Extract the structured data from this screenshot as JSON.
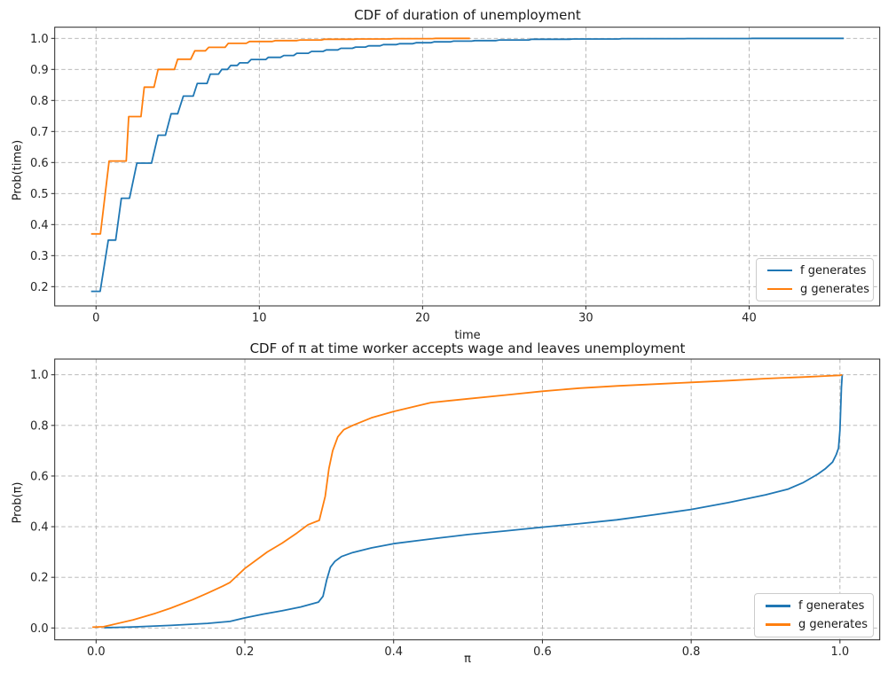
{
  "style": {
    "background": "#ffffff",
    "spine_color": "#262626",
    "text_color": "#1a1a1a",
    "grid_color": "#b0b0b0",
    "series_blue": "#1f77b4",
    "series_orange": "#ff7f0e"
  },
  "chart_data": [
    {
      "type": "line",
      "title": "CDF of duration of unemployment",
      "xlabel": "time",
      "ylabel": "Prob(time)",
      "xlim": [
        -2.53,
        48.0
      ],
      "ylim": [
        0.138,
        1.036
      ],
      "xticks": [
        0,
        10,
        20,
        30,
        40
      ],
      "xtick_labels": [
        "0",
        "10",
        "20",
        "30",
        "40"
      ],
      "yticks": [
        0.2,
        0.3,
        0.4,
        0.5,
        0.6,
        0.7,
        0.8,
        0.9,
        1.0
      ],
      "ytick_labels": [
        "0.2",
        "0.3",
        "0.4",
        "0.5",
        "0.6",
        "0.7",
        "0.8",
        "0.9",
        "1.0"
      ],
      "grid": true,
      "grid_color": "#b0b0b0",
      "legend_position": "lower right",
      "series": [
        {
          "name": "f generates",
          "color": "#1f77b4",
          "x": [
            -0.3,
            0.25,
            0.75,
            1.2,
            1.55,
            2.05,
            2.5,
            3.4,
            3.8,
            4.25,
            4.6,
            5.0,
            5.35,
            5.95,
            6.2,
            6.8,
            7.0,
            7.5,
            7.7,
            8.05,
            8.25,
            8.65,
            8.8,
            9.3,
            9.5,
            10.4,
            10.55,
            11.3,
            11.5,
            12.1,
            12.3,
            13.0,
            13.2,
            13.9,
            14.1,
            14.8,
            15.0,
            15.7,
            15.9,
            16.5,
            16.7,
            17.4,
            17.6,
            18.4,
            18.6,
            19.4,
            19.6,
            20.5,
            20.7,
            21.7,
            21.9,
            23.0,
            23.2,
            24.5,
            24.7,
            26.5,
            26.7,
            29.0,
            29.2,
            32.0,
            32.2,
            36.0,
            36.2,
            40.0,
            40.2,
            45.8
          ],
          "y": [
            0.185,
            0.185,
            0.35,
            0.35,
            0.485,
            0.485,
            0.598,
            0.598,
            0.688,
            0.688,
            0.757,
            0.757,
            0.814,
            0.814,
            0.855,
            0.855,
            0.885,
            0.885,
            0.9,
            0.9,
            0.913,
            0.913,
            0.921,
            0.921,
            0.932,
            0.932,
            0.939,
            0.939,
            0.945,
            0.945,
            0.952,
            0.952,
            0.958,
            0.958,
            0.963,
            0.963,
            0.968,
            0.968,
            0.972,
            0.972,
            0.976,
            0.976,
            0.98,
            0.98,
            0.983,
            0.983,
            0.986,
            0.986,
            0.989,
            0.989,
            0.991,
            0.991,
            0.993,
            0.993,
            0.995,
            0.995,
            0.997,
            0.997,
            0.998,
            0.998,
            0.999,
            0.999,
            0.9995,
            0.9995,
            1.0,
            1.0
          ]
        },
        {
          "name": "g generates",
          "color": "#ff7f0e",
          "x": [
            -0.3,
            0.27,
            0.8,
            1.85,
            2.0,
            2.75,
            2.95,
            3.55,
            3.8,
            4.8,
            5.0,
            5.8,
            6.05,
            6.7,
            6.9,
            7.9,
            8.1,
            9.2,
            9.4,
            10.8,
            11.0,
            12.3,
            12.5,
            13.8,
            14.0,
            15.8,
            16.0,
            18.0,
            18.2,
            20.6,
            20.8,
            22.9
          ],
          "y": [
            0.37,
            0.37,
            0.605,
            0.605,
            0.748,
            0.748,
            0.843,
            0.843,
            0.9,
            0.9,
            0.933,
            0.933,
            0.96,
            0.96,
            0.971,
            0.971,
            0.984,
            0.984,
            0.99,
            0.99,
            0.993,
            0.993,
            0.995,
            0.995,
            0.997,
            0.997,
            0.998,
            0.998,
            0.999,
            0.999,
            1.0,
            1.0
          ]
        }
      ]
    },
    {
      "type": "line",
      "title": "CDF of π at time worker accepts wage and leaves unemployment",
      "xlabel": "π",
      "ylabel": "Prob(π)",
      "xlim": [
        -0.0556,
        1.0535
      ],
      "ylim": [
        -0.047,
        1.062
      ],
      "xticks": [
        0.0,
        0.2,
        0.4,
        0.6,
        0.8,
        1.0
      ],
      "xtick_labels": [
        "0.0",
        "0.2",
        "0.4",
        "0.6",
        "0.8",
        "1.0"
      ],
      "yticks": [
        0.0,
        0.2,
        0.4,
        0.6,
        0.8,
        1.0
      ],
      "ytick_labels": [
        "0.0",
        "0.2",
        "0.4",
        "0.6",
        "0.8",
        "1.0"
      ],
      "grid": true,
      "grid_color": "#b0b0b0",
      "legend_position": "lower right",
      "series": [
        {
          "name": "f generates",
          "color": "#1f77b4",
          "x": [
            0.011,
            0.05,
            0.1,
            0.15,
            0.18,
            0.2,
            0.225,
            0.25,
            0.275,
            0.299,
            0.305,
            0.31,
            0.315,
            0.321,
            0.33,
            0.345,
            0.37,
            0.4,
            0.43,
            0.46,
            0.5,
            0.55,
            0.6,
            0.65,
            0.7,
            0.75,
            0.8,
            0.85,
            0.9,
            0.93,
            0.95,
            0.97,
            0.98,
            0.99,
            0.995,
            0.998,
            1.0,
            1.002,
            1.003
          ],
          "y": [
            0.001,
            0.004,
            0.01,
            0.018,
            0.026,
            0.04,
            0.055,
            0.068,
            0.083,
            0.102,
            0.125,
            0.19,
            0.24,
            0.263,
            0.282,
            0.298,
            0.316,
            0.333,
            0.344,
            0.355,
            0.369,
            0.383,
            0.398,
            0.412,
            0.427,
            0.447,
            0.468,
            0.495,
            0.526,
            0.548,
            0.573,
            0.607,
            0.628,
            0.655,
            0.684,
            0.71,
            0.78,
            0.95,
            1.0
          ]
        },
        {
          "name": "g generates",
          "color": "#ff7f0e",
          "x": [
            -0.005,
            0.01,
            0.05,
            0.08,
            0.1,
            0.13,
            0.15,
            0.17,
            0.18,
            0.2,
            0.23,
            0.25,
            0.27,
            0.285,
            0.3,
            0.308,
            0.313,
            0.318,
            0.325,
            0.333,
            0.345,
            0.37,
            0.4,
            0.45,
            0.5,
            0.55,
            0.6,
            0.65,
            0.7,
            0.75,
            0.8,
            0.85,
            0.9,
            0.95,
            0.98,
            1.0,
            1.003
          ],
          "y": [
            0.003,
            0.005,
            0.032,
            0.058,
            0.078,
            0.112,
            0.138,
            0.165,
            0.18,
            0.235,
            0.3,
            0.335,
            0.375,
            0.408,
            0.425,
            0.52,
            0.63,
            0.7,
            0.755,
            0.783,
            0.8,
            0.83,
            0.855,
            0.89,
            0.905,
            0.92,
            0.935,
            0.947,
            0.956,
            0.963,
            0.97,
            0.977,
            0.985,
            0.991,
            0.995,
            0.998,
            1.0
          ]
        }
      ]
    }
  ]
}
